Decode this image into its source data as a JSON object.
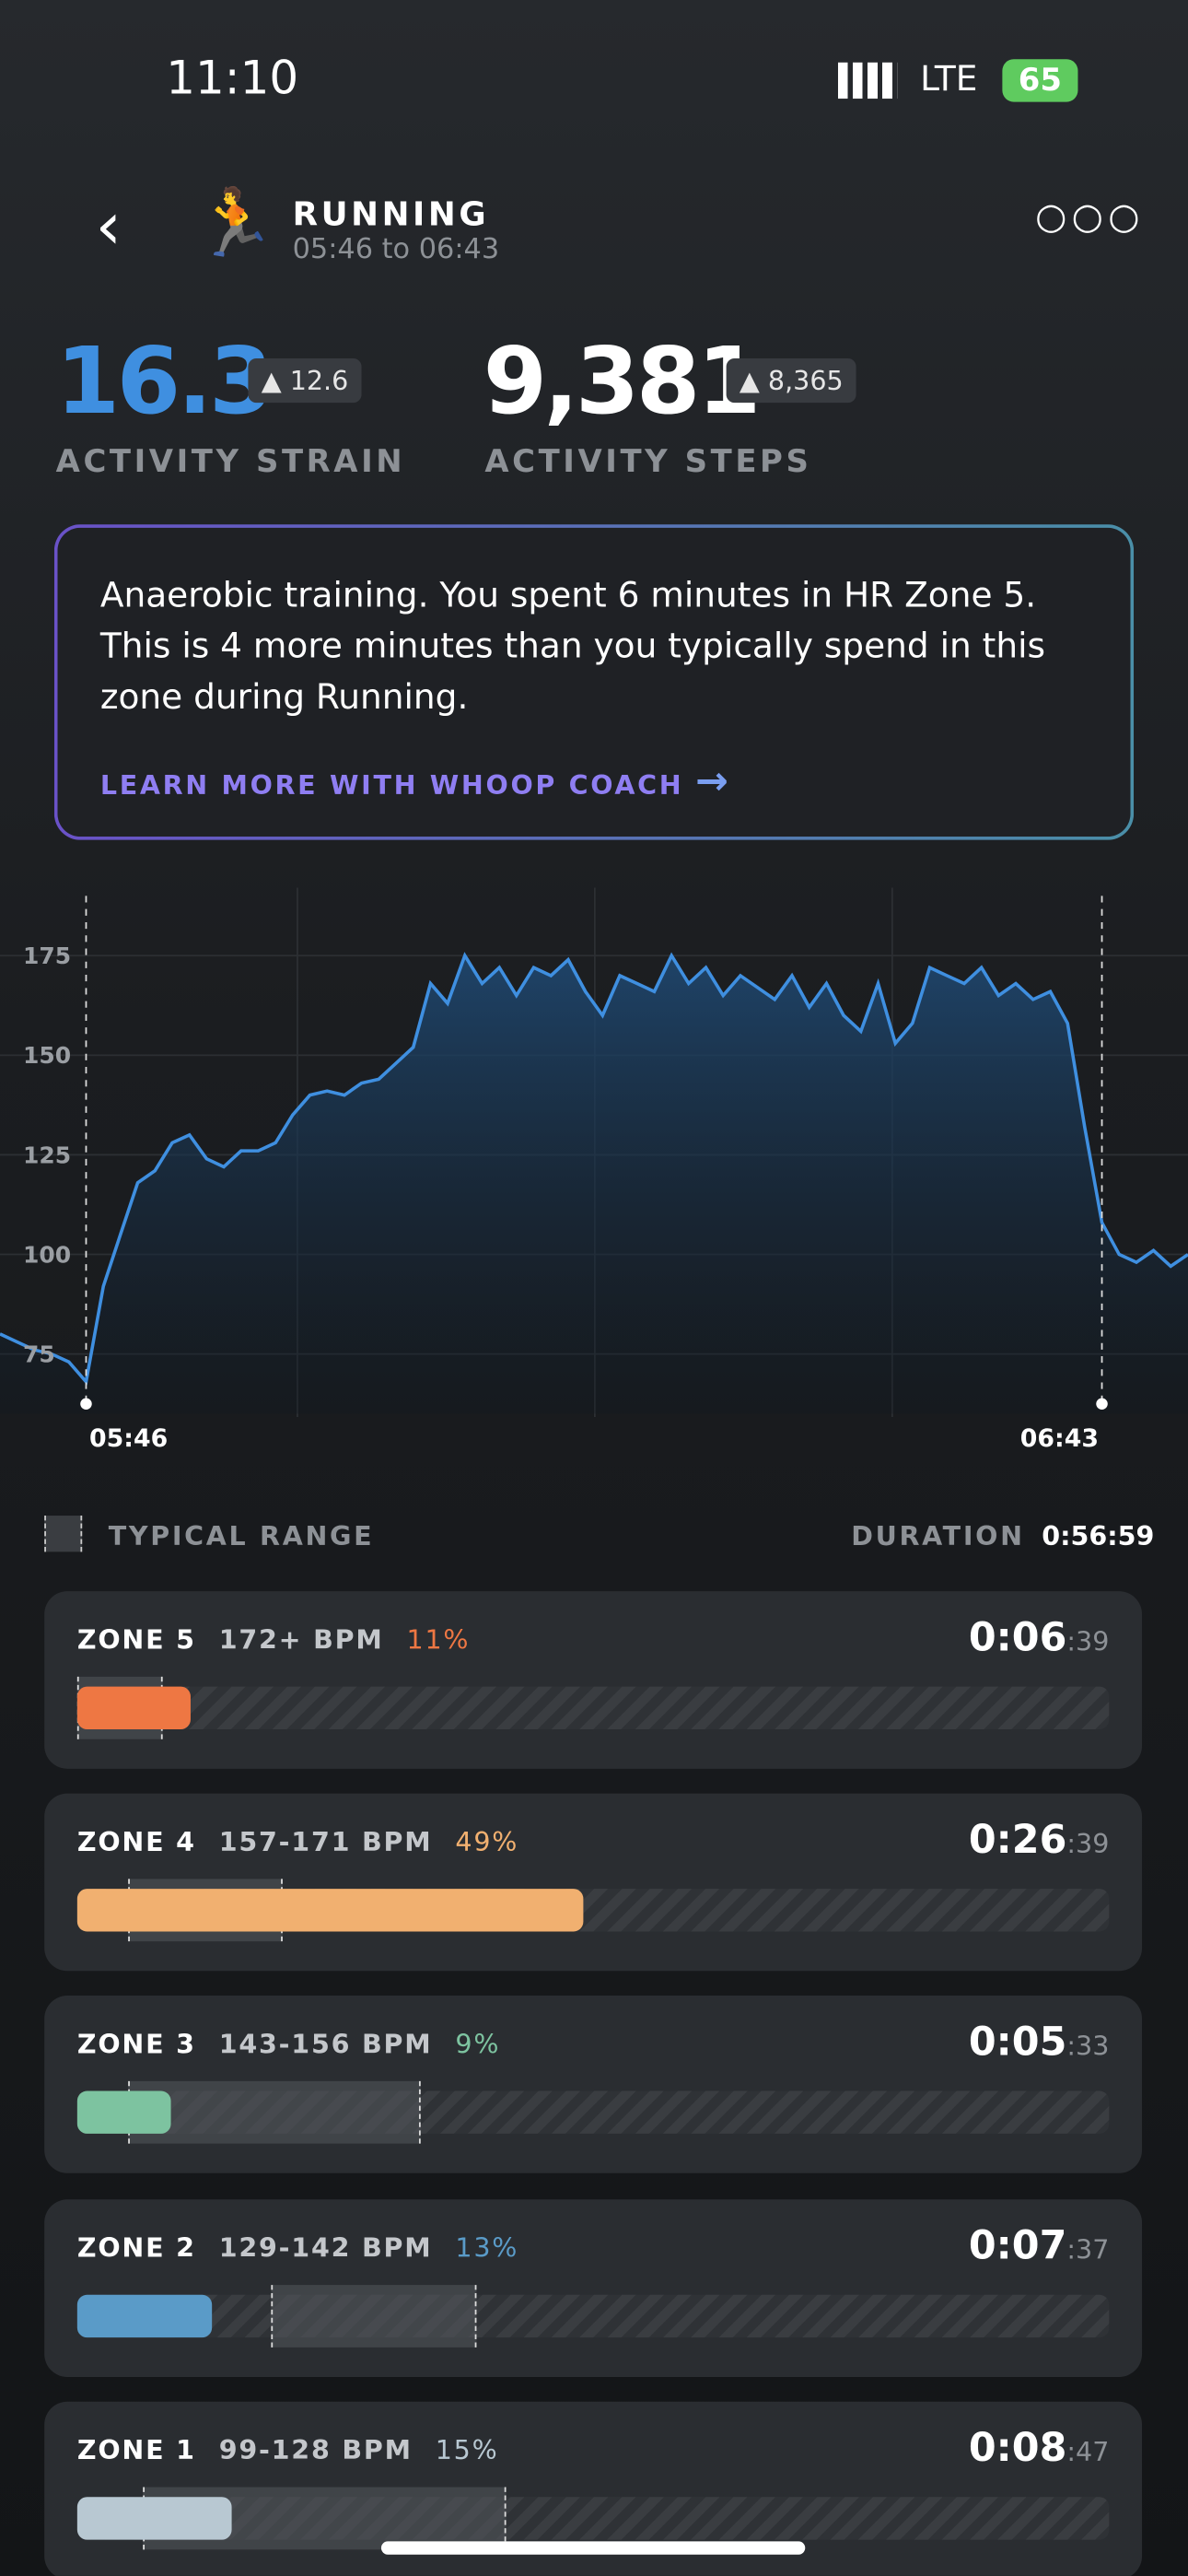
{
  "status": {
    "time": "11:10",
    "network": "LTE",
    "battery": "65"
  },
  "header": {
    "title": "RUNNING",
    "subtitle": "05:46 to 06:43"
  },
  "stats": [
    {
      "value": "16.3",
      "delta": "12.6",
      "label": "ACTIVITY STRAIN"
    },
    {
      "value": "9,381",
      "delta": "8,365",
      "label": "ACTIVITY STEPS"
    }
  ],
  "coach": {
    "text": "Anaerobic training. You spent 6 minutes in HR Zone 5. This is 4 more minutes than you typically spend in this zone during Running.",
    "link": "LEARN MORE WITH WHOOP COACH"
  },
  "chart_data": {
    "type": "line",
    "color": "#3f8fe0",
    "categories": [
      null,
      null,
      null,
      null,
      null,
      "05:46",
      null,
      null,
      null,
      null,
      null,
      null,
      null,
      null,
      null,
      null,
      null,
      null,
      null,
      null,
      null,
      null,
      null,
      null,
      null,
      null,
      null,
      null,
      null,
      null,
      null,
      null,
      null,
      null,
      null,
      null,
      null,
      null,
      null,
      null,
      null,
      null,
      null,
      null,
      null,
      null,
      null,
      null,
      null,
      null,
      null,
      null,
      null,
      null,
      null,
      null,
      null,
      null,
      null,
      null,
      null,
      null,
      null,
      null,
      "06:43",
      null,
      null,
      null,
      null,
      null
    ],
    "values": [
      80,
      78,
      76,
      75,
      73,
      68,
      92,
      105,
      118,
      121,
      128,
      130,
      124,
      122,
      126,
      126,
      128,
      135,
      140,
      141,
      140,
      143,
      144,
      148,
      152,
      168,
      163,
      175,
      168,
      172,
      165,
      172,
      170,
      174,
      166,
      160,
      170,
      168,
      166,
      175,
      168,
      172,
      165,
      170,
      167,
      164,
      170,
      162,
      168,
      160,
      156,
      168,
      153,
      158,
      172,
      170,
      168,
      172,
      165,
      168,
      164,
      166,
      158,
      132,
      108,
      100,
      98,
      101,
      97,
      100
    ],
    "ylim": [
      60,
      190
    ],
    "yticks": [
      75,
      100,
      125,
      150,
      175
    ],
    "grid": true
  },
  "legend": {
    "typical": "TYPICAL RANGE",
    "duration_label": "DURATION",
    "duration": "0:56:59"
  },
  "zones": [
    {
      "name": "ZONE 5",
      "bpm": "172+ BPM",
      "pct": 11,
      "pct_label": "11%",
      "time": "0:06",
      "sec": ":39",
      "color": "#ee7743",
      "typical": [
        0,
        8
      ]
    },
    {
      "name": "ZONE 4",
      "bpm": "157-171 BPM",
      "pct": 49,
      "pct_label": "49%",
      "time": "0:26",
      "sec": ":39",
      "color": "#f1b070",
      "typical": [
        5,
        19.6
      ]
    },
    {
      "name": "ZONE 3",
      "bpm": "143-156 BPM",
      "pct": 9,
      "pct_label": "9%",
      "time": "0:05",
      "sec": ":33",
      "color": "#7dc3a0",
      "typical": [
        5,
        33
      ]
    },
    {
      "name": "ZONE 2",
      "bpm": "129-142 BPM",
      "pct": 13,
      "pct_label": "13%",
      "time": "0:07",
      "sec": ":37",
      "color": "#5a9bc8",
      "typical": [
        18.8,
        38.4
      ]
    },
    {
      "name": "ZONE 1",
      "bpm": "99-128 BPM",
      "pct": 15,
      "pct_label": "15%",
      "time": "0:08",
      "sec": ":47",
      "color": "#b8c8d2",
      "typical": [
        6.4,
        41.2
      ]
    }
  ]
}
